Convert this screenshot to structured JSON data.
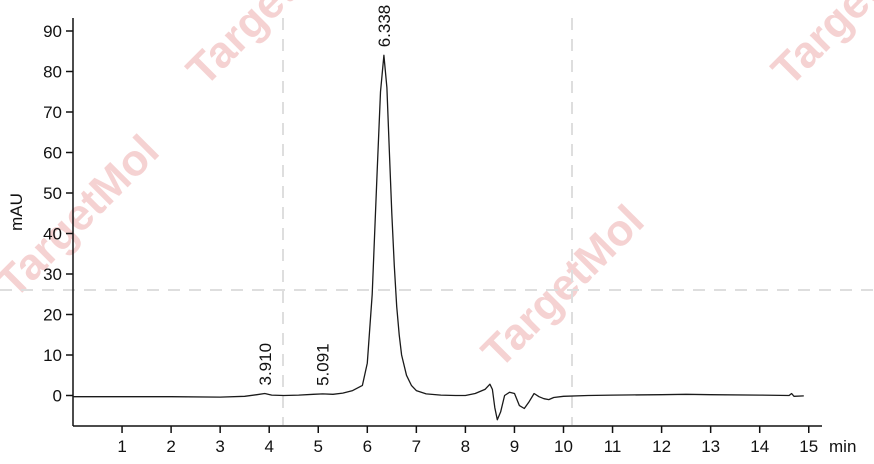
{
  "chart_data": {
    "type": "line",
    "title": "",
    "xlabel": "min",
    "ylabel": "mAU",
    "xlim": [
      0,
      15.3
    ],
    "ylim": [
      -7,
      92
    ],
    "x_ticks": [
      1,
      2,
      3,
      4,
      5,
      6,
      7,
      8,
      9,
      10,
      11,
      12,
      13,
      14,
      15
    ],
    "y_ticks": [
      0,
      10,
      20,
      30,
      40,
      50,
      60,
      70,
      80,
      90
    ],
    "grid": false,
    "series": [
      {
        "x": [
          0.0,
          1.0,
          2.0,
          3.0,
          3.5,
          3.75,
          3.91,
          4.05,
          4.3,
          4.6,
          4.9,
          5.091,
          5.3,
          5.5,
          5.7,
          5.9,
          6.0,
          6.1,
          6.2,
          6.27,
          6.338,
          6.4,
          6.45,
          6.5,
          6.55,
          6.6,
          6.65,
          6.7,
          6.8,
          6.9,
          7.0,
          7.2,
          7.5,
          7.8,
          8.0,
          8.2,
          8.4,
          8.5,
          8.55,
          8.6,
          8.65,
          8.72,
          8.8,
          8.9,
          9.0,
          9.1,
          9.2,
          9.3,
          9.4,
          9.5,
          9.6,
          9.7,
          9.8,
          10.0,
          10.5,
          11.0,
          12.0,
          12.5,
          13.0,
          14.0,
          14.6,
          14.65,
          14.7,
          14.9
        ],
        "y": [
          -0.3,
          -0.3,
          -0.3,
          -0.4,
          -0.2,
          0.2,
          0.5,
          0.1,
          0.0,
          0.1,
          0.3,
          0.4,
          0.3,
          0.6,
          1.2,
          2.5,
          8.0,
          25.0,
          55.0,
          75.0,
          84.0,
          76.0,
          60.0,
          45.0,
          32.0,
          22.0,
          15.0,
          10.0,
          5.0,
          2.5,
          1.2,
          0.4,
          0.1,
          0.0,
          0.0,
          0.5,
          1.5,
          2.8,
          1.5,
          -3.0,
          -6.0,
          -4.0,
          0.0,
          0.8,
          0.5,
          -2.5,
          -3.2,
          -1.5,
          0.5,
          -0.3,
          -0.8,
          -1.0,
          -0.5,
          -0.2,
          0.0,
          0.1,
          0.2,
          0.3,
          0.2,
          0.1,
          0.0,
          0.5,
          -0.2,
          -0.1
        ]
      }
    ],
    "peak_labels": [
      "3.910",
      "5.091",
      "6.338"
    ],
    "peak_positions": [
      {
        "x": 3.91,
        "y": 0.5
      },
      {
        "x": 5.091,
        "y": 0.4
      },
      {
        "x": 6.338,
        "y": 84.0
      }
    ]
  },
  "watermark": {
    "text": "TargetMol",
    "color": "#f2c4c4"
  }
}
